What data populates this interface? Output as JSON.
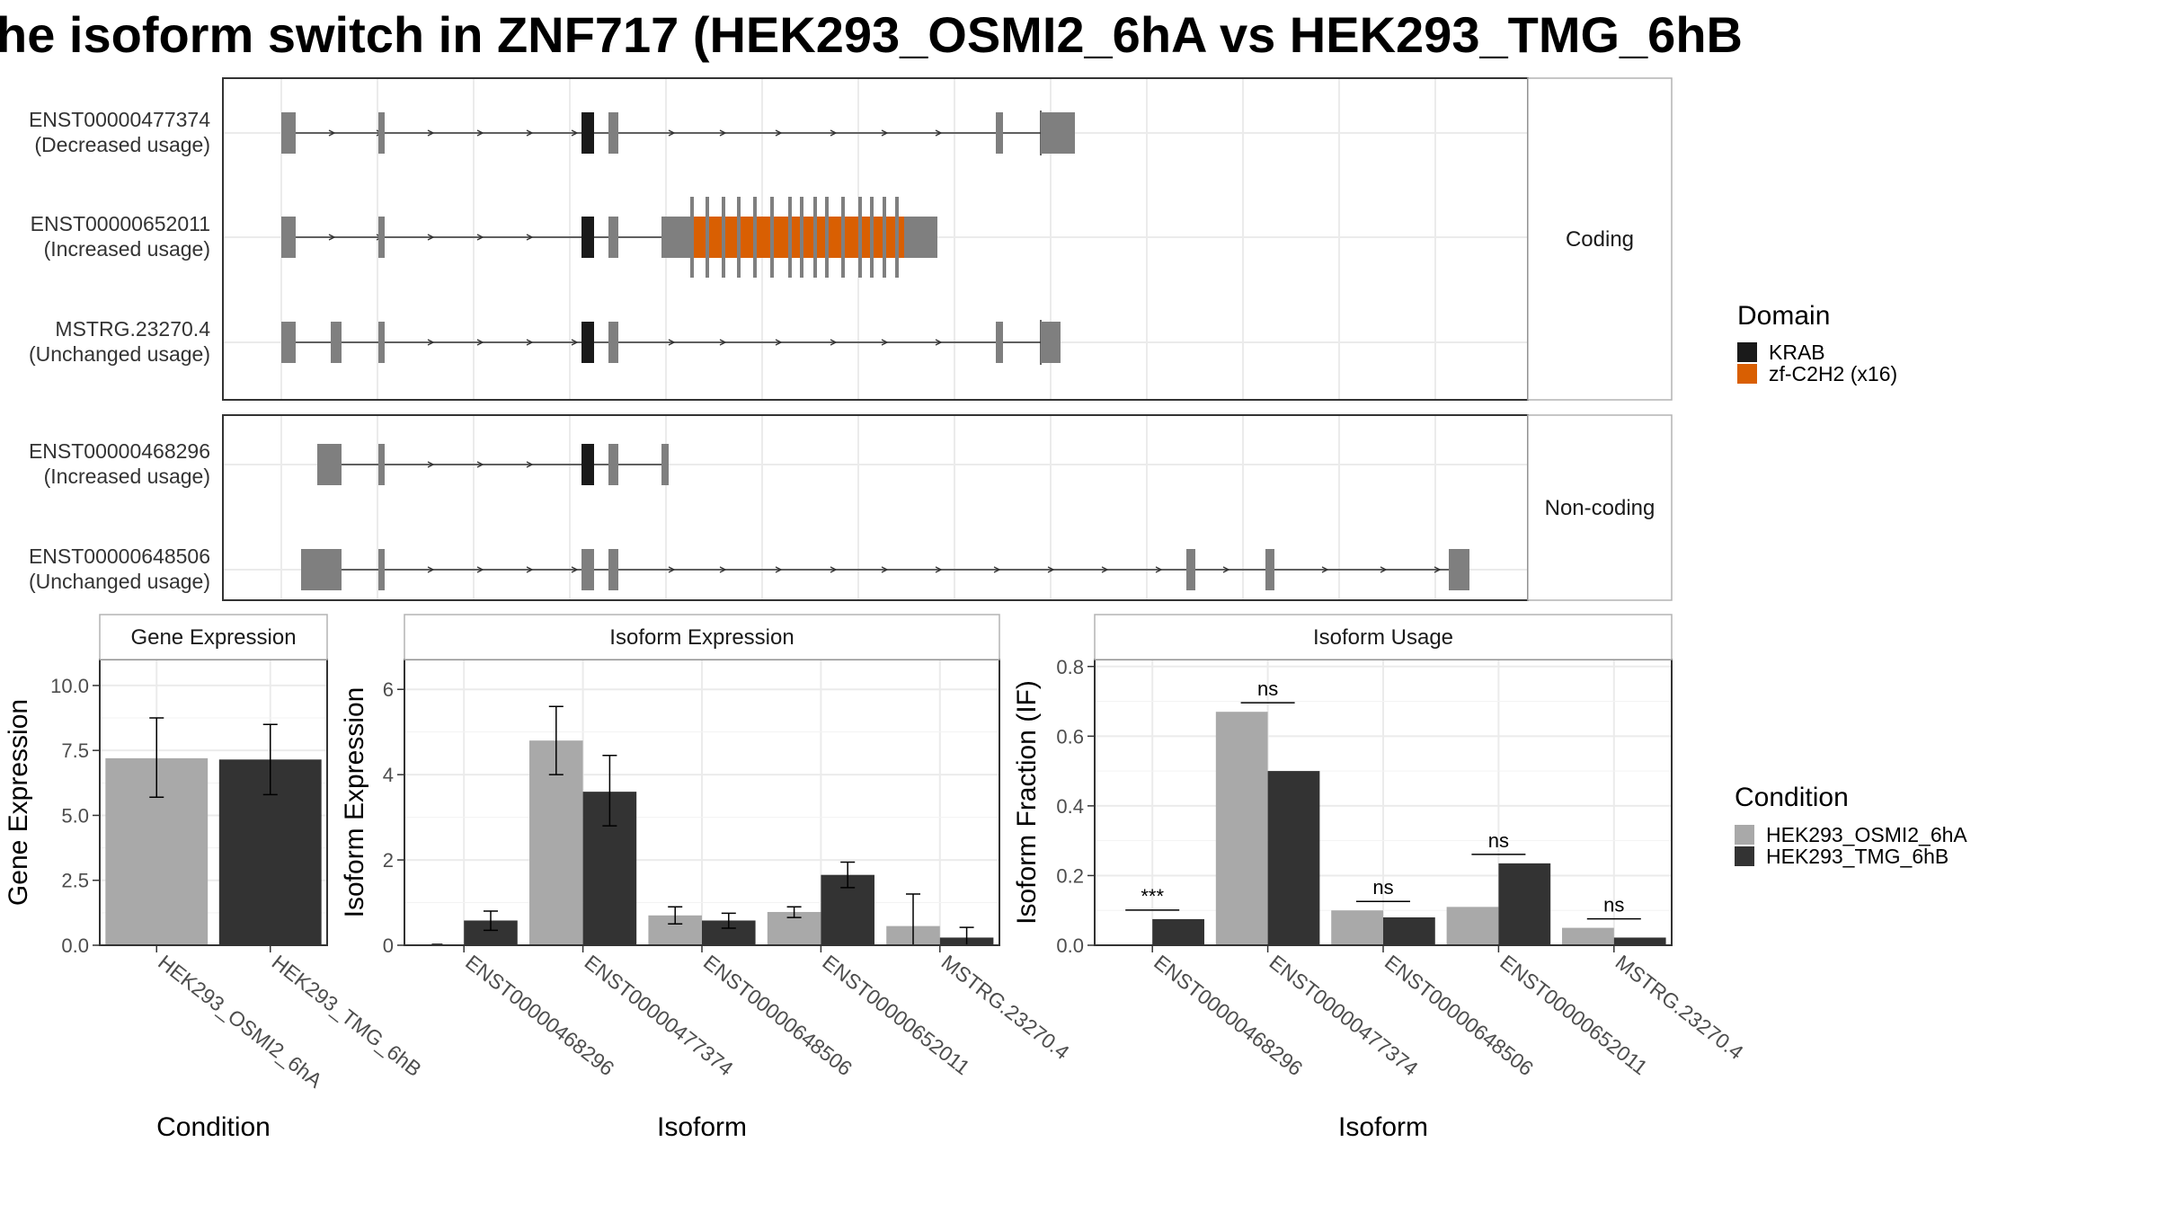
{
  "title": "he isoform switch in ZNF717 (HEK293_OSMI2_6hA vs HEK293_TMG_6hB",
  "colors": {
    "exon": "#7f7f7f",
    "krab": "#1a1a1a",
    "zf": "#d95f02",
    "cond_a": "#a9a9a9",
    "cond_b": "#333333",
    "grid": "#ebebeb",
    "border": "#333333",
    "strip_border": "#b3b3b3"
  },
  "structure": {
    "groups": [
      {
        "label": "Coding",
        "transcripts": [
          {
            "id": "ENST00000477374",
            "usage": "(Decreased usage)"
          },
          {
            "id": "ENST00000652011",
            "usage": "(Increased usage)"
          },
          {
            "id": "MSTRG.23270.4",
            "usage": "(Unchanged usage)"
          }
        ]
      },
      {
        "label": "Non-coding",
        "transcripts": [
          {
            "id": "ENST00000468296",
            "usage": "(Increased usage)"
          },
          {
            "id": "ENST00000648506",
            "usage": "(Unchanged usage)"
          }
        ]
      }
    ],
    "legend": {
      "title": "Domain",
      "items": [
        {
          "label": "KRAB",
          "color": "#1a1a1a"
        },
        {
          "label": "zf-C2H2 (x16)",
          "color": "#d95f02"
        }
      ]
    }
  },
  "chart_data": [
    {
      "type": "bar",
      "title": "Gene Expression",
      "xlabel": "Condition",
      "ylabel": "Gene Expression",
      "categories": [
        "HEK293_OSMI2_6hA",
        "HEK293_TMG_6hB"
      ],
      "values": [
        7.2,
        7.15
      ],
      "errors": [
        [
          5.7,
          8.75
        ],
        [
          5.8,
          8.5
        ]
      ],
      "ylim": [
        0,
        11
      ],
      "yticks": [
        "0.0",
        "2.5",
        "5.0",
        "7.5",
        "10.0"
      ]
    },
    {
      "type": "bar",
      "title": "Isoform Expression",
      "xlabel": "Isoform",
      "ylabel": "Isoform Expression",
      "categories": [
        "ENST00000468296",
        "ENST00000477374",
        "ENST00000648506",
        "ENST00000652011",
        "MSTRG.23270.4"
      ],
      "series": [
        {
          "name": "HEK293_OSMI2_6hA",
          "values": [
            0.0,
            4.8,
            0.7,
            0.78,
            0.45
          ],
          "errors": [
            [
              0.0,
              0.0
            ],
            [
              4.0,
              5.6
            ],
            [
              0.5,
              0.9
            ],
            [
              0.65,
              0.9
            ],
            [
              0.0,
              1.2
            ]
          ]
        },
        {
          "name": "HEK293_TMG_6hB",
          "values": [
            0.58,
            3.6,
            0.58,
            1.65,
            0.18
          ],
          "errors": [
            [
              0.35,
              0.8
            ],
            [
              2.8,
              4.45
            ],
            [
              0.4,
              0.75
            ],
            [
              1.35,
              1.95
            ],
            [
              0.0,
              0.42
            ]
          ]
        }
      ],
      "ylim": [
        0,
        6.7
      ],
      "yticks": [
        "0",
        "2",
        "4",
        "6"
      ]
    },
    {
      "type": "bar",
      "title": "Isoform Usage",
      "xlabel": "Isoform",
      "ylabel": "Isoform Fraction (IF)",
      "categories": [
        "ENST00000468296",
        "ENST00000477374",
        "ENST00000648506",
        "ENST00000652011",
        "MSTRG.23270.4"
      ],
      "series": [
        {
          "name": "HEK293_OSMI2_6hA",
          "values": [
            0.0,
            0.67,
            0.1,
            0.11,
            0.05
          ]
        },
        {
          "name": "HEK293_TMG_6hB",
          "values": [
            0.075,
            0.5,
            0.08,
            0.235,
            0.022
          ]
        }
      ],
      "significance": [
        "***",
        "ns",
        "ns",
        "ns",
        "ns"
      ],
      "ylim": [
        0,
        0.82
      ],
      "yticks": [
        "0.0",
        "0.2",
        "0.4",
        "0.6",
        "0.8"
      ]
    }
  ],
  "condition_legend": {
    "title": "Condition",
    "items": [
      {
        "label": "HEK293_OSMI2_6hA",
        "color": "#a9a9a9"
      },
      {
        "label": "HEK293_TMG_6hB",
        "color": "#333333"
      }
    ]
  }
}
